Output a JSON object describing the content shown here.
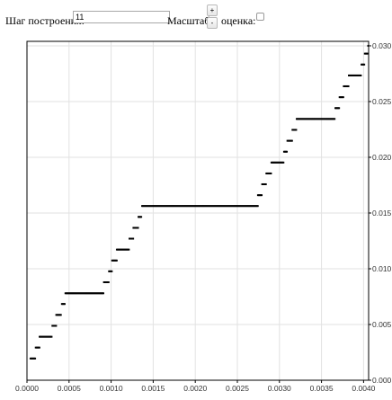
{
  "toolbar": {
    "step_label": "Шаг построения:",
    "step_value": "11",
    "scale_label": "Масштаб:",
    "zoom_in": "+",
    "zoom_out": "-",
    "estimate_label": "оценка:",
    "estimate_checked": false
  },
  "chart_data": {
    "type": "scatter",
    "title": "",
    "xlabel": "",
    "ylabel": "",
    "grid": true,
    "xlim": [
      0,
      0.00406
    ],
    "ylim": [
      0,
      0.0304
    ],
    "x_ticks": [
      "0.0000",
      "0.0005",
      "0.0010",
      "0.0015",
      "0.0020",
      "0.0025",
      "0.0030",
      "0.0035",
      "0.0040"
    ],
    "y_ticks": [
      "0.000",
      "0.005",
      "0.010",
      "0.015",
      "0.020",
      "0.025",
      "0.030"
    ],
    "x_tick_values": [
      0,
      0.0005,
      0.001,
      0.0015,
      0.002,
      0.0025,
      0.003,
      0.0035,
      0.004
    ],
    "y_tick_values": [
      0,
      0.005,
      0.01,
      0.015,
      0.02,
      0.025,
      0.03
    ],
    "flat_segments": [
      {
        "x0": 4.2e-05,
        "x1": 0.000104,
        "y": 0.00195
      },
      {
        "x0": 0.000104,
        "x1": 0.00015,
        "y": 0.00293
      },
      {
        "x0": 0.00015,
        "x1": 0.000302,
        "y": 0.0039
      },
      {
        "x0": 0.000302,
        "x1": 0.000348,
        "y": 0.00488
      },
      {
        "x0": 0.000348,
        "x1": 0.000405,
        "y": 0.00586
      },
      {
        "x0": 0.000415,
        "x1": 0.000457,
        "y": 0.00684
      },
      {
        "x0": 0.000457,
        "x1": 0.000915,
        "y": 0.0078
      },
      {
        "x0": 0.000915,
        "x1": 0.000975,
        "y": 0.00879
      },
      {
        "x0": 0.000975,
        "x1": 0.001012,
        "y": 0.00977
      },
      {
        "x0": 0.001012,
        "x1": 0.001068,
        "y": 0.01074
      },
      {
        "x0": 0.001068,
        "x1": 0.001218,
        "y": 0.01172
      },
      {
        "x0": 0.001218,
        "x1": 0.001265,
        "y": 0.0127
      },
      {
        "x0": 0.001265,
        "x1": 0.001325,
        "y": 0.01367
      },
      {
        "x0": 0.001325,
        "x1": 0.001368,
        "y": 0.01465
      },
      {
        "x0": 0.001368,
        "x1": 0.002745,
        "y": 0.01563
      },
      {
        "x0": 0.002745,
        "x1": 0.002795,
        "y": 0.0166
      },
      {
        "x0": 0.002795,
        "x1": 0.002845,
        "y": 0.01758
      },
      {
        "x0": 0.002845,
        "x1": 0.002905,
        "y": 0.01855
      },
      {
        "x0": 0.002905,
        "x1": 0.003055,
        "y": 0.01953
      },
      {
        "x0": 0.003055,
        "x1": 0.003095,
        "y": 0.0205
      },
      {
        "x0": 0.003095,
        "x1": 0.003155,
        "y": 0.02148
      },
      {
        "x0": 0.003155,
        "x1": 0.003205,
        "y": 0.02246
      },
      {
        "x0": 0.003205,
        "x1": 0.003665,
        "y": 0.02344
      },
      {
        "x0": 0.003665,
        "x1": 0.003715,
        "y": 0.02441
      },
      {
        "x0": 0.003715,
        "x1": 0.003765,
        "y": 0.02539
      },
      {
        "x0": 0.003765,
        "x1": 0.003825,
        "y": 0.02637
      },
      {
        "x0": 0.003825,
        "x1": 0.003975,
        "y": 0.02734
      },
      {
        "x0": 0.003975,
        "x1": 0.004015,
        "y": 0.02832
      },
      {
        "x0": 0.004015,
        "x1": 0.004055,
        "y": 0.0293
      },
      {
        "x0": 0.004055,
        "x1": 0.00406,
        "y": 0.03
      }
    ],
    "points_per_segment_step": 1.1e-05
  },
  "colors": {
    "plot_border": "#000000",
    "grid": "#e2e2e2",
    "points": "#000000"
  }
}
